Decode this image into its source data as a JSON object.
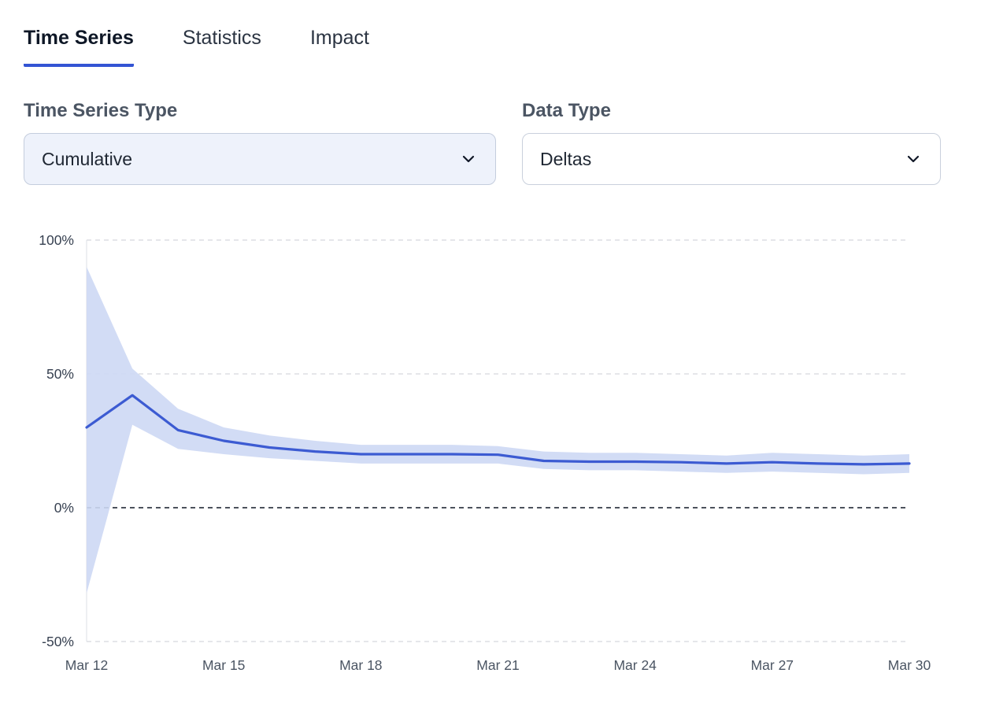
{
  "tabs": [
    {
      "label": "Time Series",
      "active": true
    },
    {
      "label": "Statistics",
      "active": false
    },
    {
      "label": "Impact",
      "active": false
    }
  ],
  "filters": {
    "time_series_type": {
      "label": "Time Series Type",
      "value": "Cumulative"
    },
    "data_type": {
      "label": "Data Type",
      "value": "Deltas"
    }
  },
  "colors": {
    "accent": "#3354d4",
    "line": "#3c5bd2",
    "band": "#cdd8f4",
    "zero_line": "#111827",
    "gridline": "#d5d8de"
  },
  "chart_data": {
    "type": "line",
    "title": "",
    "xlabel": "",
    "ylabel": "",
    "x": [
      "Mar 12",
      "Mar 13",
      "Mar 14",
      "Mar 15",
      "Mar 16",
      "Mar 17",
      "Mar 18",
      "Mar 19",
      "Mar 20",
      "Mar 21",
      "Mar 22",
      "Mar 23",
      "Mar 24",
      "Mar 25",
      "Mar 26",
      "Mar 27",
      "Mar 28",
      "Mar 29",
      "Mar 30"
    ],
    "x_tick_labels": [
      "Mar 12",
      "Mar 15",
      "Mar 18",
      "Mar 21",
      "Mar 24",
      "Mar 27",
      "Mar 30"
    ],
    "y_ticks": [
      100,
      50,
      0,
      -50
    ],
    "y_tick_labels": [
      "100%",
      "50%",
      "0%",
      "-50%"
    ],
    "ylim": [
      -50,
      100
    ],
    "grid": "horizontal-dashed",
    "zero_line": true,
    "legend": "none",
    "series": [
      {
        "name": "mean",
        "type": "line",
        "values": [
          30,
          42,
          29,
          25,
          22.5,
          21,
          20,
          20,
          20,
          19.8,
          17.5,
          17.2,
          17.2,
          17,
          16.5,
          17,
          16.5,
          16.2,
          16.5
        ]
      },
      {
        "name": "upper_bound",
        "type": "band-upper",
        "values": [
          90,
          52,
          37,
          30,
          27,
          25,
          23.5,
          23.5,
          23.5,
          23,
          21,
          20.5,
          20.5,
          20,
          19.5,
          20.5,
          20,
          19.5,
          20
        ]
      },
      {
        "name": "lower_bound",
        "type": "band-lower",
        "values": [
          -32,
          31,
          22,
          20,
          18.5,
          17.5,
          16.5,
          16.5,
          16.5,
          16.5,
          14.5,
          14,
          14,
          13.5,
          13,
          13.5,
          13,
          12.5,
          13
        ]
      }
    ]
  }
}
